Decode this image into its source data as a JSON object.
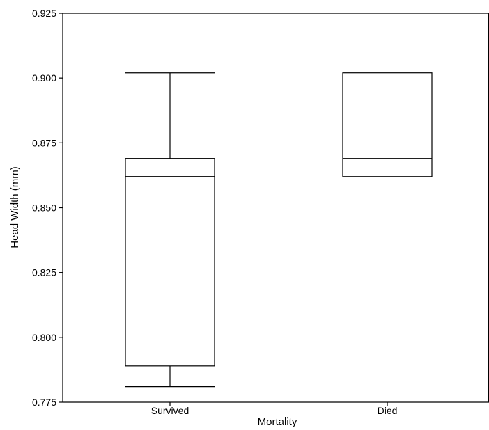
{
  "chart_data": {
    "type": "boxplot",
    "xlabel": "Mortality",
    "ylabel": "Head Width (mm)",
    "ylim": [
      0.775,
      0.925
    ],
    "yticks": [
      "0.775",
      "0.800",
      "0.825",
      "0.850",
      "0.875",
      "0.900",
      "0.925"
    ],
    "categories": [
      "Survived",
      "Died"
    ],
    "boxes": [
      {
        "category": "Survived",
        "whisker_low": 0.781,
        "q1": 0.789,
        "median": 0.862,
        "q3": 0.869,
        "whisker_high": 0.902
      },
      {
        "category": "Died",
        "whisker_low": 0.862,
        "q1": 0.862,
        "median": 0.869,
        "q3": 0.902,
        "whisker_high": 0.902
      }
    ],
    "grid": false,
    "legend": "none",
    "colors": {
      "stroke": "#000000",
      "fill": "#ffffff"
    }
  }
}
